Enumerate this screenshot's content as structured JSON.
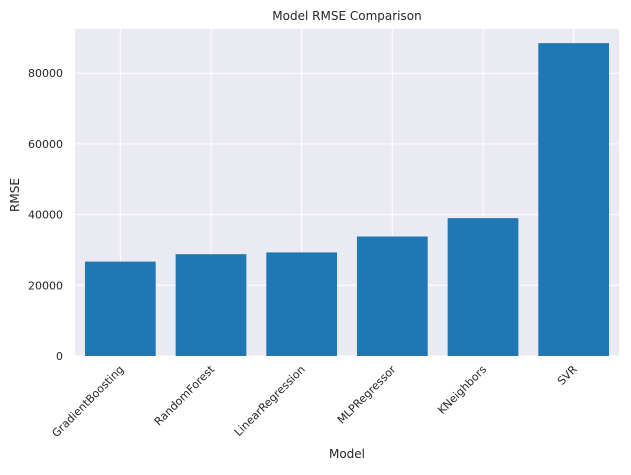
{
  "chart_data": {
    "type": "bar",
    "title": "Model RMSE Comparison",
    "xlabel": "Model",
    "ylabel": "RMSE",
    "categories": [
      "GradientBoosting",
      "RandomForest",
      "LinearRegression",
      "MLPRegressor",
      "KNeighbors",
      "SVR"
    ],
    "values": [
      26700,
      28800,
      29300,
      33800,
      39000,
      88500
    ],
    "ylim": [
      0,
      92500
    ],
    "yticks": [
      0,
      20000,
      40000,
      60000,
      80000
    ],
    "ytick_labels": [
      "0",
      "20000",
      "40000",
      "60000",
      "80000"
    ],
    "grid": true,
    "legend": "none",
    "colors": {
      "bar": "#1f77b4",
      "plot_background": "#eaeaf2",
      "grid": "#ffffff",
      "text": "#262626"
    }
  }
}
